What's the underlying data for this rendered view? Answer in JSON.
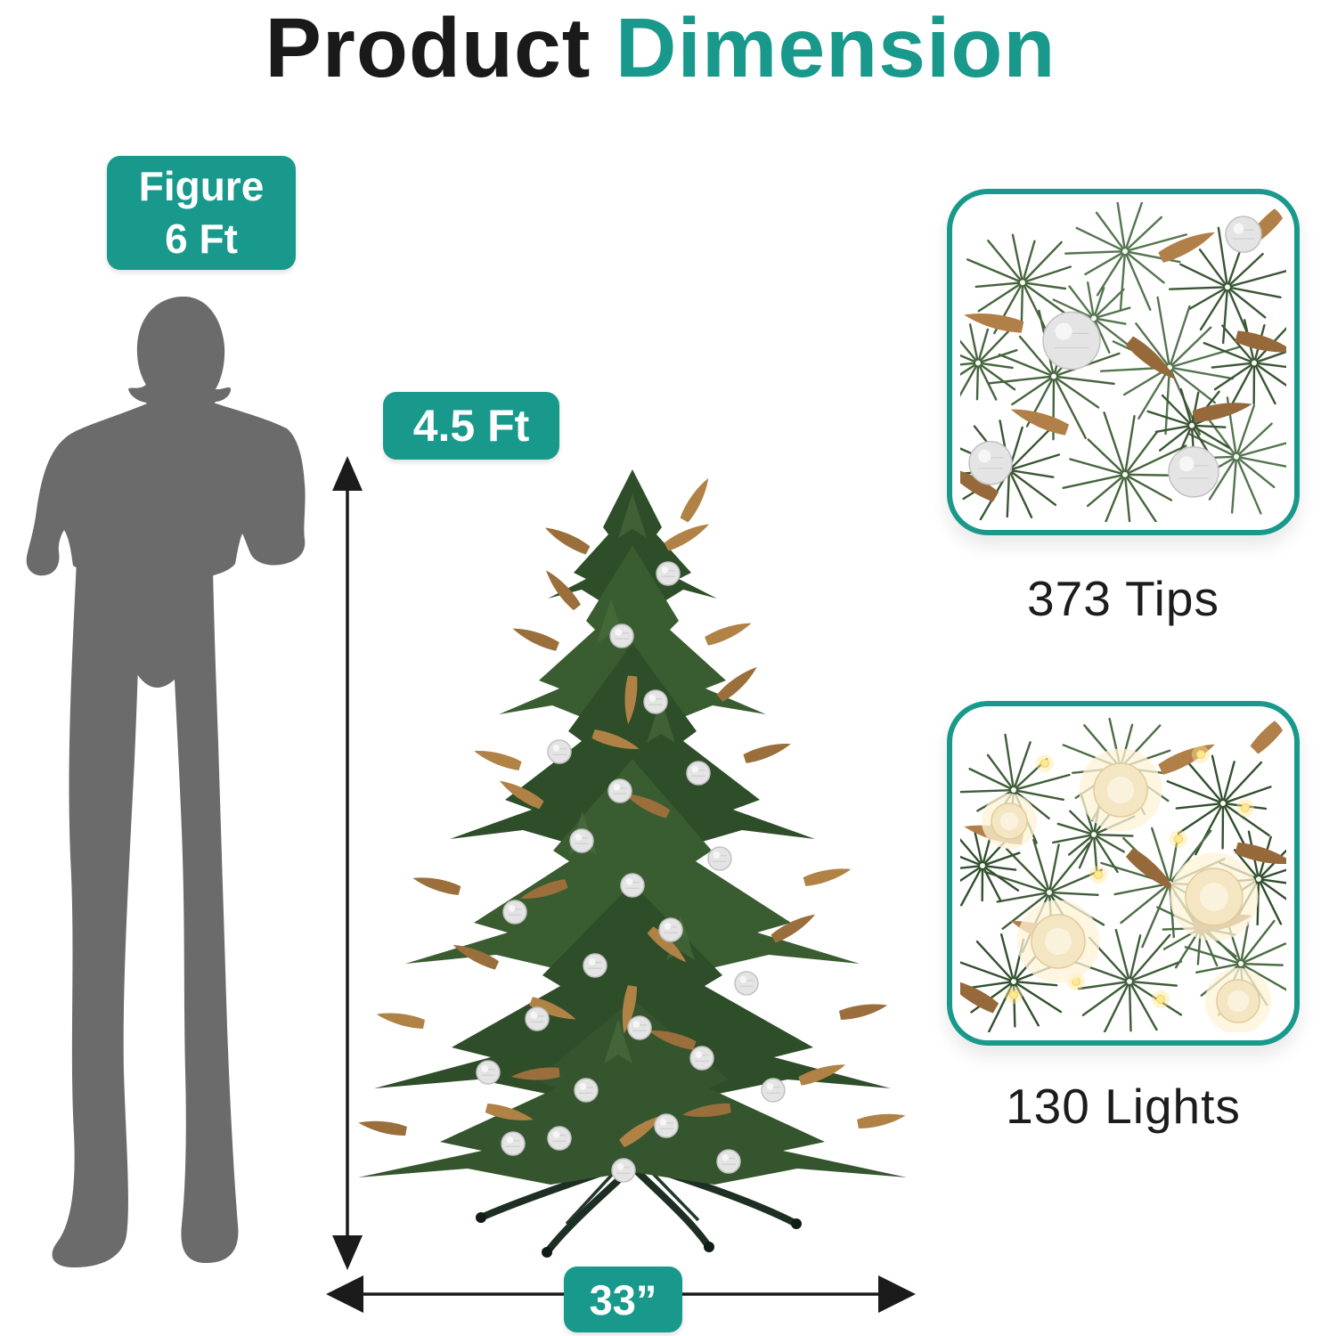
{
  "title": {
    "black": "Product",
    "accent": "Dimension"
  },
  "scale_figure": {
    "badge_line1": "Figure",
    "badge_line2": "6 Ft"
  },
  "tree": {
    "height_badge": "4.5 Ft",
    "width_badge": "33”"
  },
  "details": {
    "tips": {
      "label": "373 Tips"
    },
    "lights": {
      "label": "130 Lights"
    }
  },
  "colors": {
    "accent_teal": "#18998b",
    "silhouette_gray": "#6b6b6b",
    "arrow_black": "#1b1b1b",
    "text_black": "#1c1c1c",
    "tip_brown": "#b08246",
    "ornament_silver": "#e4e4e4",
    "light_warm": "#ffe98f"
  }
}
